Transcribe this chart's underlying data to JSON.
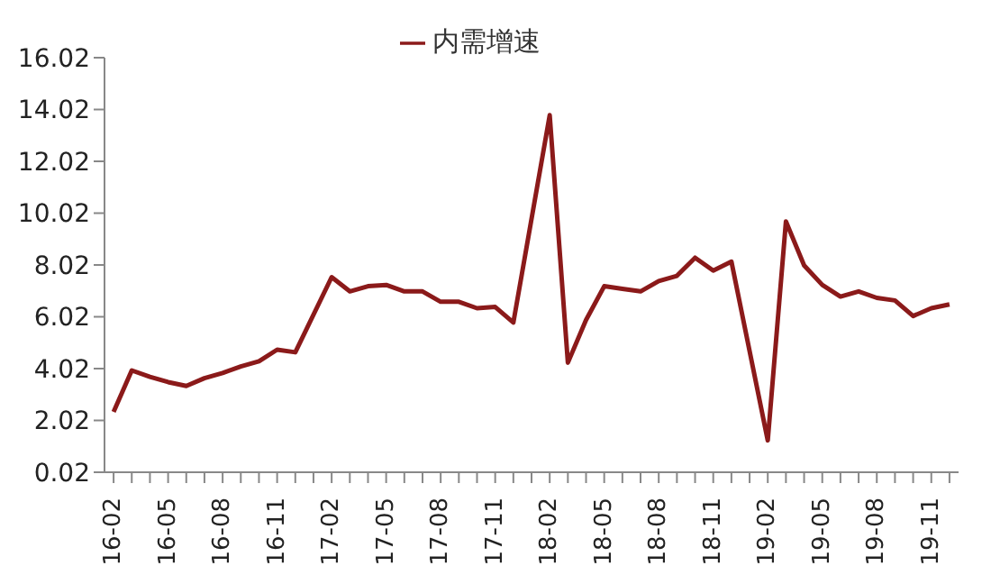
{
  "chart_data": {
    "type": "line",
    "categories": [
      "16-02",
      null,
      null,
      "16-05",
      null,
      null,
      "16-08",
      null,
      null,
      "16-11",
      null,
      null,
      "17-02",
      null,
      null,
      "17-05",
      null,
      null,
      "17-08",
      null,
      null,
      "17-11",
      null,
      null,
      "18-02",
      null,
      null,
      "18-05",
      null,
      null,
      "18-08",
      null,
      null,
      "18-11",
      null,
      null,
      "19-02",
      null,
      null,
      "19-05",
      null,
      null,
      "19-08",
      null,
      null,
      "19-11",
      null
    ],
    "series": [
      {
        "name": "内需增速",
        "color": "#8b1a1a",
        "values": [
          2.35,
          3.95,
          3.7,
          3.5,
          3.35,
          3.65,
          3.85,
          4.1,
          4.3,
          4.75,
          4.65,
          null,
          7.55,
          7.0,
          7.2,
          7.25,
          7.0,
          7.0,
          6.6,
          6.6,
          6.35,
          6.4,
          5.8,
          null,
          13.8,
          4.25,
          5.9,
          7.2,
          7.1,
          7.0,
          7.4,
          7.6,
          8.3,
          7.8,
          8.15,
          null,
          1.25,
          9.7,
          8.0,
          7.25,
          6.8,
          7.0,
          6.75,
          6.65,
          6.05,
          6.35,
          6.5
        ]
      }
    ],
    "ylim": [
      0.02,
      16.02
    ],
    "yticks": [
      0.02,
      2.02,
      4.02,
      6.02,
      8.02,
      10.02,
      12.02,
      14.02,
      16.02
    ],
    "grid": false,
    "legend": "top",
    "marker": "none",
    "line_style": "solid"
  }
}
